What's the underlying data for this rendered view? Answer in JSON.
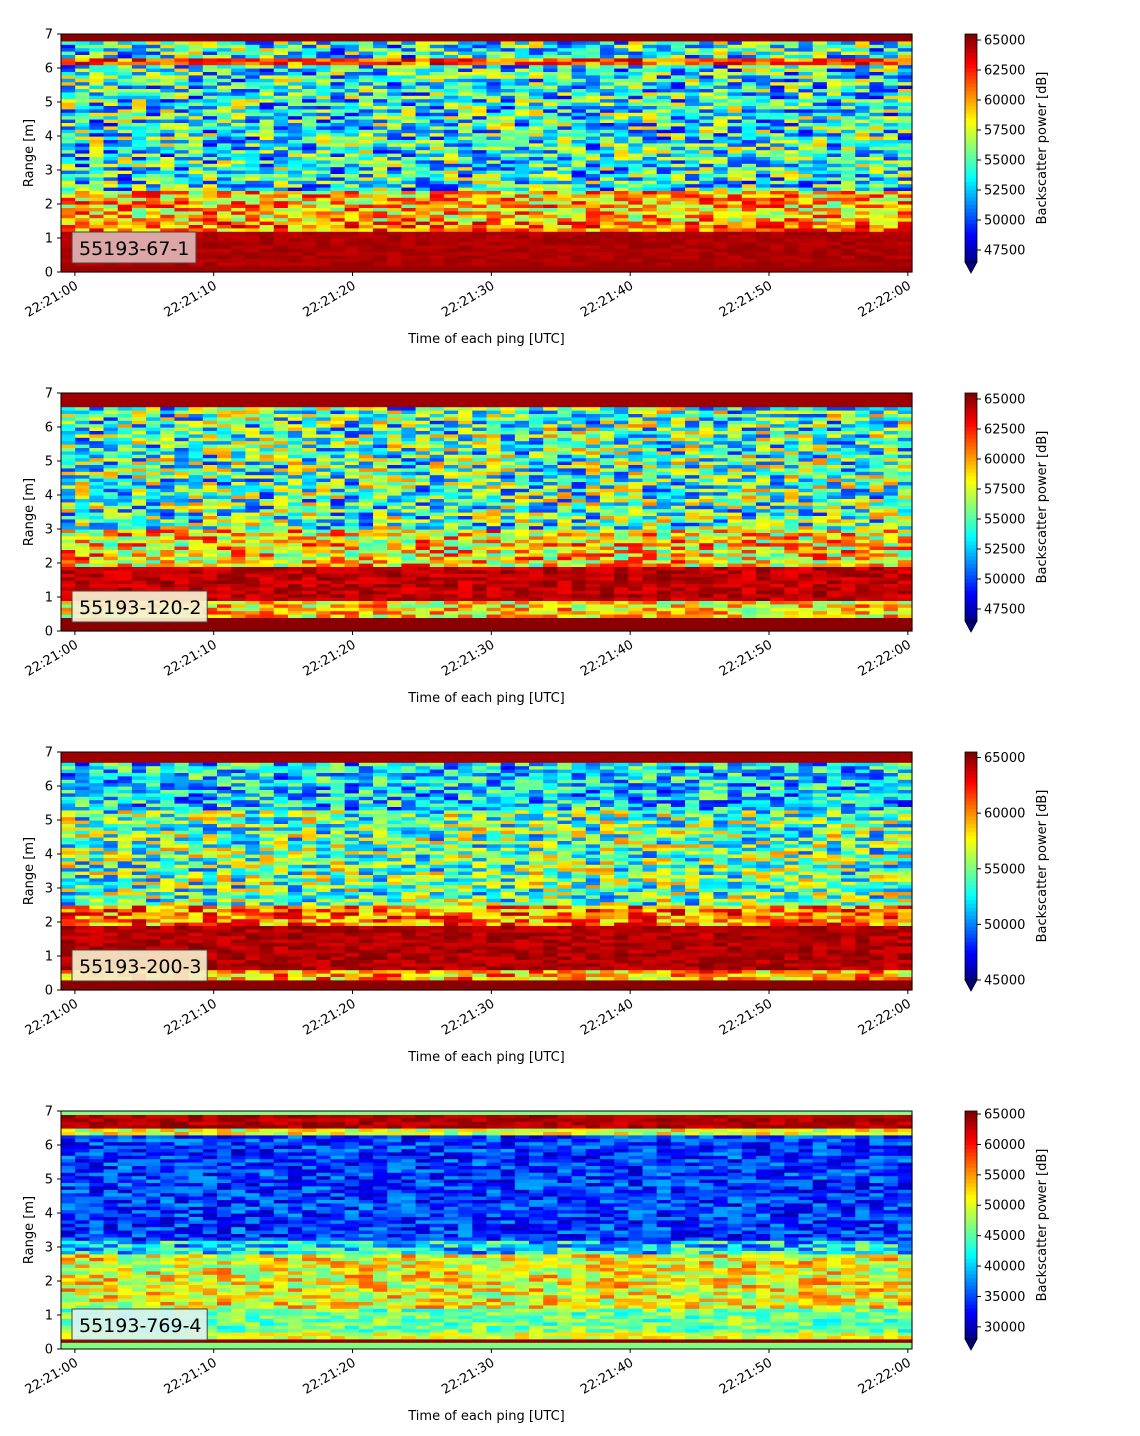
{
  "chart_data": [
    {
      "type": "heatmap",
      "title": "",
      "label": "55193-67-1",
      "label_bg": "#e0b4b4",
      "xlabel": "Time of each ping [UTC]",
      "ylabel": "Range [m]",
      "x_ticks": [
        "22:21:00",
        "22:21:10",
        "22:21:20",
        "22:21:30",
        "22:21:40",
        "22:21:50",
        "22:22:00"
      ],
      "xlim_seconds": [
        -1,
        60.3
      ],
      "y_ticks": [
        "0",
        "1",
        "2",
        "3",
        "4",
        "5",
        "6",
        "7"
      ],
      "ylim": [
        0,
        7
      ],
      "colorbar_label": "Backscatter power [dB]",
      "colorbar_ticks": [
        "47500",
        "50000",
        "52500",
        "55000",
        "57500",
        "60000",
        "62500",
        "65000"
      ],
      "clim": [
        46500,
        65500
      ],
      "colormap": "jet",
      "colorbar_extend": "min"
    },
    {
      "type": "heatmap",
      "title": "",
      "label": "55193-120-2",
      "label_bg": "#f6f0d2",
      "xlabel": "Time of each ping [UTC]",
      "ylabel": "Range [m]",
      "x_ticks": [
        "22:21:00",
        "22:21:10",
        "22:21:20",
        "22:21:30",
        "22:21:40",
        "22:21:50",
        "22:22:00"
      ],
      "xlim_seconds": [
        -1,
        60.3
      ],
      "y_ticks": [
        "0",
        "1",
        "2",
        "3",
        "4",
        "5",
        "6",
        "7"
      ],
      "ylim": [
        0,
        7
      ],
      "colorbar_label": "Backscatter power [dB]",
      "colorbar_ticks": [
        "47500",
        "50000",
        "52500",
        "55000",
        "57500",
        "60000",
        "62500",
        "65000"
      ],
      "clim": [
        46500,
        65500
      ],
      "colormap": "jet",
      "colorbar_extend": "min"
    },
    {
      "type": "heatmap",
      "title": "",
      "label": "55193-200-3",
      "label_bg": "#f6ecc8",
      "xlabel": "Time of each ping [UTC]",
      "ylabel": "Range [m]",
      "x_ticks": [
        "22:21:00",
        "22:21:10",
        "22:21:20",
        "22:21:30",
        "22:21:40",
        "22:21:50",
        "22:22:00"
      ],
      "xlim_seconds": [
        -1,
        60.3
      ],
      "y_ticks": [
        "0",
        "1",
        "2",
        "3",
        "4",
        "5",
        "6",
        "7"
      ],
      "ylim": [
        0,
        7
      ],
      "colorbar_label": "Backscatter power [dB]",
      "colorbar_ticks": [
        "45000",
        "50000",
        "55000",
        "60000",
        "65000"
      ],
      "clim": [
        45000,
        65500
      ],
      "colormap": "jet",
      "colorbar_extend": "min"
    },
    {
      "type": "heatmap",
      "title": "",
      "label": "55193-769-4",
      "label_bg": "#d8f2f0",
      "xlabel": "Time of each ping [UTC]",
      "ylabel": "Range [m]",
      "x_ticks": [
        "22:21:00",
        "22:21:10",
        "22:21:20",
        "22:21:30",
        "22:21:40",
        "22:21:50",
        "22:22:00"
      ],
      "xlim_seconds": [
        -1,
        60.3
      ],
      "y_ticks": [
        "0",
        "1",
        "2",
        "3",
        "4",
        "5",
        "6",
        "7"
      ],
      "ylim": [
        0,
        7
      ],
      "colorbar_label": "Backscatter power [dB]",
      "colorbar_ticks": [
        "30000",
        "35000",
        "40000",
        "45000",
        "50000",
        "55000",
        "60000",
        "65000"
      ],
      "clim": [
        28000,
        65500
      ],
      "colormap": "jet",
      "colorbar_extend": "min"
    }
  ]
}
